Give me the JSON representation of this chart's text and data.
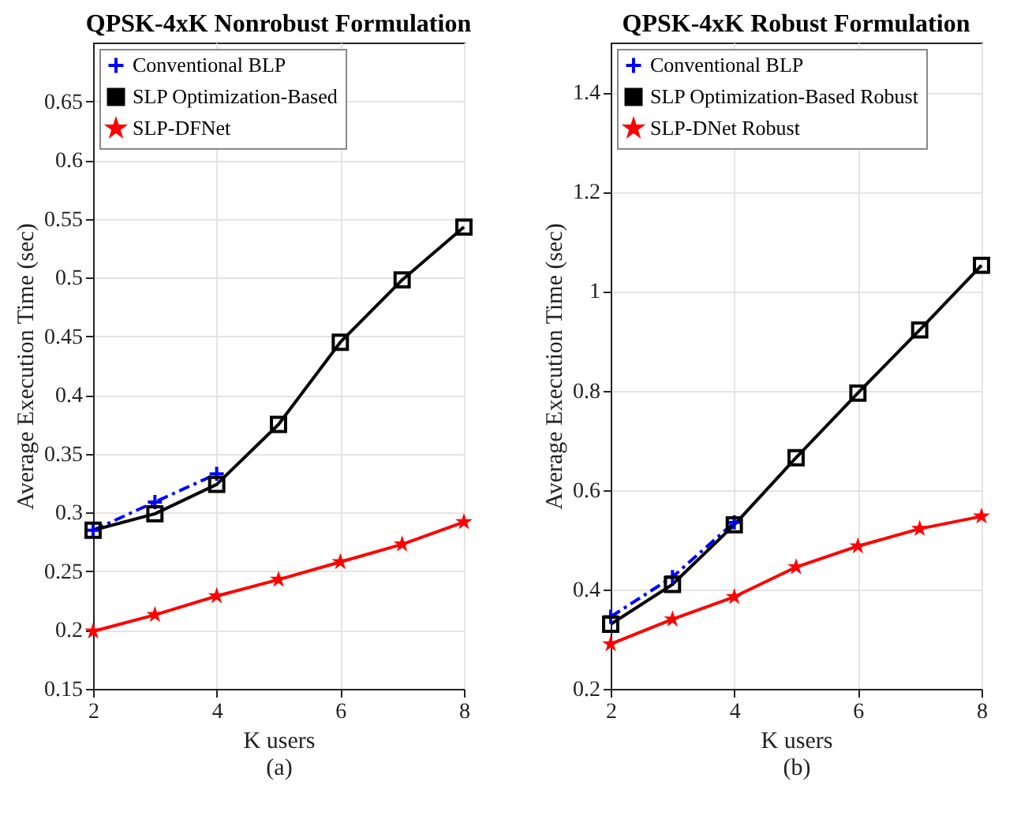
{
  "chart_data": [
    {
      "type": "line",
      "title": "QPSK-4xK Nonrobust Formulation",
      "xlabel": "K users",
      "ylabel": "Average Execution Time (sec)",
      "annotations": [
        "(a)"
      ],
      "x": [
        2,
        3,
        4,
        5,
        6,
        7,
        8
      ],
      "xlim": [
        2,
        8
      ],
      "xticks": [
        2,
        4,
        6,
        8
      ],
      "ylim": [
        0.15,
        0.7
      ],
      "yticks": [
        0.15,
        0.2,
        0.25,
        0.3,
        0.35,
        0.4,
        0.45,
        0.5,
        0.55,
        0.6,
        0.65
      ],
      "grid": true,
      "legend": "top left",
      "series": [
        {
          "name": "Conventional BLP",
          "color": "#0000ff",
          "marker": "cross",
          "line_style": "dashed",
          "values": [
            0.285,
            0.309,
            0.333,
            null,
            null,
            null,
            null
          ]
        },
        {
          "name": "SLP Optimization-Based",
          "color": "#000000",
          "marker": "square",
          "line_style": "solid",
          "values": [
            0.285,
            0.299,
            0.324,
            0.375,
            0.445,
            0.498,
            0.543
          ]
        },
        {
          "name": "SLP-DFNet",
          "color": "#ff0000",
          "marker": "star",
          "line_style": "solid",
          "values": [
            0.199,
            0.213,
            0.229,
            0.243,
            0.258,
            0.273,
            0.292
          ]
        }
      ]
    },
    {
      "type": "line",
      "title": "QPSK-4xK Robust Formulation",
      "xlabel": "K users",
      "ylabel": "Average Execution Time (sec)",
      "annotations": [
        "(b)"
      ],
      "x": [
        2,
        3,
        4,
        5,
        6,
        7,
        8
      ],
      "xlim": [
        2,
        8
      ],
      "xticks": [
        2,
        4,
        6,
        8
      ],
      "ylim": [
        0.2,
        1.5
      ],
      "yticks": [
        0.2,
        0.4,
        0.6,
        0.8,
        1,
        1.2,
        1.4
      ],
      "grid": true,
      "legend": "top left",
      "series": [
        {
          "name": "Conventional BLP",
          "color": "#0000ff",
          "marker": "cross",
          "line_style": "dashed",
          "values": [
            0.345,
            0.425,
            0.535,
            null,
            null,
            null,
            null
          ]
        },
        {
          "name": "SLP Optimization-Based Robust",
          "color": "#000000",
          "marker": "square",
          "line_style": "solid",
          "values": [
            0.33,
            0.41,
            0.53,
            0.665,
            0.795,
            0.922,
            1.052
          ]
        },
        {
          "name": "SLP-DNet Robust",
          "color": "#ff0000",
          "marker": "star",
          "line_style": "solid",
          "values": [
            0.29,
            0.34,
            0.385,
            0.445,
            0.487,
            0.522,
            0.547
          ]
        }
      ]
    }
  ]
}
